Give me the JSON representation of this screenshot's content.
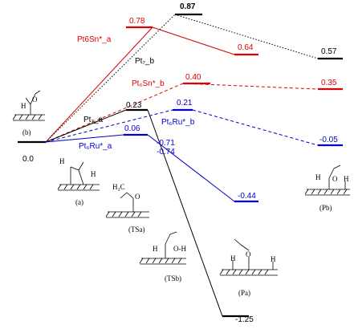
{
  "series": {
    "pt7": {
      "color": "#000000"
    },
    "pt6sn": {
      "color": "#dd0000"
    },
    "pt6ru": {
      "color": "#0000cc"
    }
  },
  "labels": {
    "reactant_energy": "0.0",
    "pt6sn_a": "Pt6Sn*_a",
    "pt7_b": "Pt₇_b",
    "pt6sn_b": "Pt₆Sn*_b",
    "pt7_a": "Pt₇_a",
    "pt6ru_b": "Pt₆Ru*_b",
    "pt6ru_a": "Pt₆Ru*_a"
  },
  "energies": {
    "pt7_ts_b": "0.87",
    "pt6sn_ts_a": "0.78",
    "pt6sn_int_a": "0.64",
    "pt7_int_b": "0.57",
    "pt6sn_ts_b": "0.40",
    "pt6sn_int_b": "0.35",
    "pt7_ts_a": "0.23",
    "pt6ru_ts_b": "0.21",
    "pt6ru_ts_a": "0.06",
    "pt6ru_int_b": "-0.05",
    "pt6ru_int_a_1": "-0.71",
    "pt6ru_int_a_2": "-0.74",
    "pt6ru_final_a": "-0.44",
    "pt7_final_a": "-1.25"
  },
  "structures": {
    "b": "(b)",
    "a": "(a)",
    "tsa": "(TSa)",
    "tsb": "(TSb)",
    "pa": "(Pa)",
    "pb": "(Pb)"
  }
}
